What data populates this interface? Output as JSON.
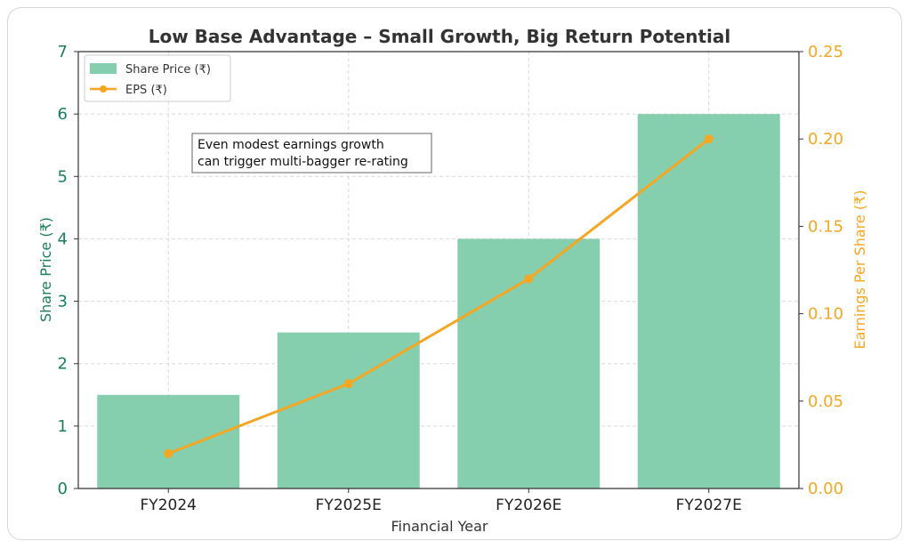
{
  "chart_data": {
    "type": "bar",
    "title": "Low Base Advantage – Small Growth, Big Return Potential",
    "xlabel": "Financial Year",
    "ylabel": "Share Price (₹)",
    "y2label": "Earnings Per Share (₹)",
    "categories": [
      "FY2024",
      "FY2025E",
      "FY2026E",
      "FY2027E"
    ],
    "series": [
      {
        "name": "Share Price (₹)",
        "type": "bar",
        "axis": "left",
        "values": [
          1.5,
          2.5,
          4.0,
          6.0
        ]
      },
      {
        "name": "EPS (₹)",
        "type": "line",
        "axis": "right",
        "values": [
          0.02,
          0.06,
          0.12,
          0.2
        ]
      }
    ],
    "ylim": [
      0,
      7
    ],
    "y2lim": [
      0,
      0.25
    ],
    "yticks": [
      "0",
      "1",
      "2",
      "3",
      "4",
      "5",
      "6",
      "7"
    ],
    "y2ticks": [
      "0.00",
      "0.05",
      "0.10",
      "0.15",
      "0.20",
      "0.25"
    ],
    "annotation": [
      "Even modest earnings growth",
      "can trigger multi-bagger re-rating"
    ],
    "grid": true,
    "legend_position": "top-left",
    "colors": {
      "bar": "#86cfae",
      "line": "#f5a623",
      "left_axis": "#1a7f5a",
      "right_axis": "#f5a623"
    }
  }
}
